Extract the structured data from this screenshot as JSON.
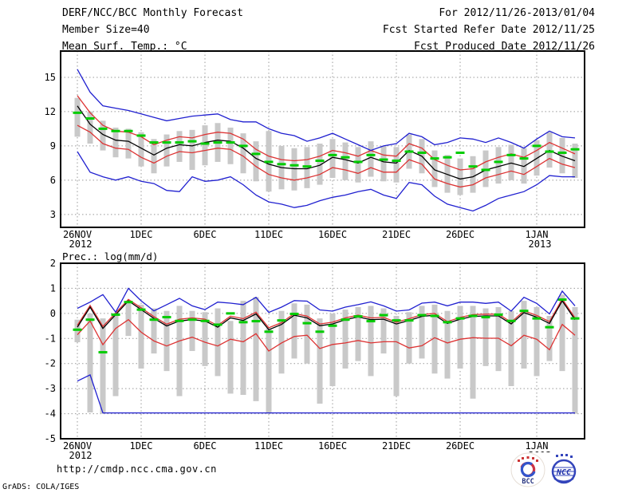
{
  "header": {
    "left_line1": "DERF/NCC/BCC Monthly Forecast",
    "left_line2": "Member Size=40",
    "right_line1": "For 2012/11/26-2013/01/04",
    "right_line2": "Fcst Started Refer Date 2012/11/25",
    "right_line3": "Fcst Produced Date 2012/11/26"
  },
  "footer": {
    "url": "http://cmdp.ncc.cma.gov.cn",
    "credit": "GrADS: COLA/IGES"
  },
  "logos": {
    "bcc": "BCC",
    "ncc": "NCC"
  },
  "colors": {
    "line_blue": "#2020d0",
    "line_red": "#dd3333",
    "line_black": "#000000",
    "clim_green": "#00cc00",
    "spread_bar": "#c9c9c9",
    "grid": "#999999",
    "frame": "#000000"
  },
  "xaxis": {
    "start_date": "2012-11-26",
    "end_date": "2013-01-04",
    "n_days": 40,
    "tick_days": [
      0,
      5,
      10,
      15,
      20,
      25,
      30,
      36
    ],
    "tick_labels": [
      "26NOV",
      "1DEC",
      "6DEC",
      "11DEC",
      "16DEC",
      "21DEC",
      "26DEC",
      "1JAN"
    ],
    "sub_labels": [
      "2012",
      "",
      "",
      "",
      "",
      "",
      "",
      "2013"
    ]
  },
  "chart_data": [
    {
      "type": "line",
      "title": "Mean Surf. Temp.: °C",
      "ylim": [
        1.87,
        17.3
      ],
      "yticks": [
        15,
        12,
        9,
        6,
        3
      ],
      "ygrid": [
        15,
        12,
        9,
        6,
        3
      ],
      "grid": true,
      "legend": "none",
      "series": [
        {
          "name": "mean-plus-spread",
          "color": "line_red",
          "style": "line",
          "values": [
            13.4,
            11.9,
            10.8,
            10.3,
            10.2,
            9.8,
            9.1,
            9.5,
            9.8,
            9.7,
            10.0,
            10.2,
            10.1,
            9.6,
            8.7,
            8.1,
            7.8,
            7.7,
            7.8,
            8.1,
            8.6,
            8.4,
            8.1,
            8.6,
            8.2,
            8.1,
            9.2,
            8.8,
            7.8,
            7.3,
            6.9,
            7.0,
            7.6,
            8.0,
            8.3,
            8.0,
            8.6,
            9.3,
            8.8,
            8.3
          ]
        },
        {
          "name": "mean-minus-spread",
          "color": "line_red",
          "style": "line",
          "values": [
            10.8,
            10.2,
            9.2,
            8.8,
            8.7,
            8.0,
            7.5,
            8.1,
            8.5,
            8.4,
            8.6,
            8.8,
            8.7,
            8.1,
            7.2,
            6.5,
            6.2,
            6.0,
            6.2,
            6.5,
            7.1,
            6.9,
            6.6,
            7.1,
            6.7,
            6.7,
            7.8,
            7.4,
            6.1,
            5.7,
            5.4,
            5.6,
            6.2,
            6.5,
            6.8,
            6.5,
            7.2,
            7.9,
            7.4,
            7.1
          ]
        },
        {
          "name": "ensemble-mean",
          "color": "line_black",
          "style": "line",
          "values": [
            12.5,
            10.9,
            10.0,
            9.5,
            9.4,
            8.8,
            8.2,
            8.8,
            9.1,
            9.0,
            9.3,
            9.5,
            9.4,
            8.8,
            7.9,
            7.4,
            7.1,
            7.0,
            7.0,
            7.3,
            8.0,
            7.8,
            7.5,
            8.0,
            7.6,
            7.5,
            8.6,
            8.1,
            6.9,
            6.5,
            6.1,
            6.3,
            6.9,
            7.2,
            7.5,
            7.2,
            7.9,
            8.6,
            8.1,
            7.7
          ]
        },
        {
          "name": "climatology",
          "color": "clim_green",
          "style": "dash-markers",
          "values": [
            11.9,
            11.4,
            10.5,
            10.3,
            10.3,
            9.9,
            9.3,
            9.3,
            9.3,
            9.4,
            9.2,
            9.3,
            9.3,
            9.0,
            8.3,
            7.6,
            7.4,
            7.3,
            7.2,
            7.7,
            8.2,
            8.0,
            7.6,
            8.2,
            7.8,
            7.7,
            8.5,
            8.4,
            7.9,
            8.0,
            8.4,
            7.2,
            6.9,
            7.6,
            8.2,
            7.9,
            9.0,
            8.5,
            8.4,
            8.7
          ]
        },
        {
          "name": "ensemble-max",
          "color": "line_blue",
          "style": "line",
          "values": [
            15.7,
            13.7,
            12.5,
            12.3,
            12.1,
            11.8,
            11.5,
            11.2,
            11.4,
            11.6,
            11.7,
            11.8,
            11.3,
            11.1,
            11.1,
            10.5,
            10.1,
            9.9,
            9.4,
            9.7,
            10.1,
            9.6,
            9.1,
            8.6,
            9.0,
            9.2,
            10.1,
            9.8,
            9.1,
            9.3,
            9.7,
            9.6,
            9.3,
            9.7,
            9.3,
            8.8,
            9.6,
            10.3,
            9.8,
            9.7
          ]
        },
        {
          "name": "ensemble-min",
          "color": "line_blue",
          "style": "line",
          "values": [
            8.5,
            6.7,
            6.3,
            6.0,
            6.3,
            5.9,
            5.7,
            5.1,
            5.0,
            6.3,
            5.9,
            6.0,
            6.3,
            5.6,
            4.7,
            4.1,
            3.9,
            3.6,
            3.8,
            4.2,
            4.5,
            4.7,
            5.0,
            5.2,
            4.7,
            4.4,
            5.8,
            5.6,
            4.6,
            3.9,
            3.6,
            3.3,
            3.8,
            4.4,
            4.7,
            5.0,
            5.6,
            6.4,
            6.3,
            6.3
          ]
        }
      ],
      "bars": {
        "name": "ensemble-spread-bars",
        "hi": [
          13.2,
          12.0,
          11.2,
          10.6,
          10.5,
          10.2,
          9.6,
          10.0,
          10.3,
          10.4,
          10.8,
          11.0,
          10.6,
          10.1,
          9.4,
          10.3,
          9.0,
          8.8,
          8.9,
          9.2,
          9.6,
          9.3,
          8.9,
          9.4,
          9.0,
          8.9,
          10.0,
          9.6,
          8.6,
          8.2,
          7.9,
          8.1,
          8.6,
          8.9,
          9.1,
          8.8,
          9.5,
          10.2,
          9.7,
          9.2
        ],
        "lo": [
          9.8,
          9.2,
          8.6,
          8.0,
          7.9,
          7.2,
          6.6,
          7.2,
          7.6,
          6.9,
          7.3,
          7.6,
          7.4,
          6.6,
          5.9,
          5.0,
          5.2,
          5.1,
          5.3,
          5.6,
          6.2,
          6.0,
          5.8,
          6.3,
          5.9,
          5.8,
          7.0,
          6.6,
          5.4,
          4.9,
          4.7,
          4.9,
          5.4,
          5.7,
          6.0,
          5.7,
          6.4,
          7.1,
          6.6,
          6.2
        ]
      }
    },
    {
      "type": "line",
      "title": "Prec.: log(mm/d)",
      "ylim": [
        -5,
        2
      ],
      "yticks": [
        2,
        1,
        0,
        -1,
        -2,
        -3,
        -4,
        -5
      ],
      "ygrid": [
        1,
        0,
        -1,
        -2,
        -3,
        -4
      ],
      "grid": true,
      "legend": "none",
      "series": [
        {
          "name": "mean-plus-spread",
          "color": "line_red",
          "style": "line",
          "values": [
            -0.48,
            0.32,
            -0.52,
            0.02,
            0.56,
            0.22,
            -0.13,
            -0.43,
            -0.23,
            -0.18,
            -0.23,
            -0.48,
            -0.11,
            -0.21,
            0.05,
            -0.57,
            -0.37,
            0.0,
            -0.11,
            -0.42,
            -0.35,
            -0.18,
            -0.07,
            -0.18,
            -0.16,
            -0.35,
            -0.21,
            -0.05,
            0.0,
            -0.33,
            -0.16,
            -0.05,
            -0.03,
            -0.03,
            -0.35,
            0.1,
            -0.08,
            -0.33,
            0.57,
            -0.18
          ]
        },
        {
          "name": "mean-minus-spread",
          "color": "line_red",
          "style": "line",
          "values": [
            -0.85,
            -0.3,
            -1.25,
            -0.6,
            -0.25,
            -0.75,
            -1.1,
            -1.3,
            -1.1,
            -0.95,
            -1.15,
            -1.3,
            -1.03,
            -1.13,
            -0.81,
            -1.5,
            -1.18,
            -0.92,
            -0.87,
            -1.4,
            -1.24,
            -1.18,
            -1.08,
            -1.18,
            -1.13,
            -1.13,
            -1.38,
            -1.29,
            -0.97,
            -1.18,
            -1.03,
            -0.97,
            -0.99,
            -0.99,
            -1.29,
            -0.87,
            -1.03,
            -1.45,
            -0.44,
            -0.87
          ]
        },
        {
          "name": "ensemble-mean",
          "color": "line_black",
          "style": "line",
          "values": [
            -0.55,
            0.25,
            -0.6,
            -0.05,
            0.5,
            0.15,
            -0.2,
            -0.5,
            -0.3,
            -0.25,
            -0.3,
            -0.55,
            -0.18,
            -0.28,
            -0.02,
            -0.65,
            -0.44,
            -0.07,
            -0.18,
            -0.49,
            -0.42,
            -0.25,
            -0.14,
            -0.25,
            -0.23,
            -0.42,
            -0.28,
            -0.12,
            -0.07,
            -0.4,
            -0.23,
            -0.12,
            -0.1,
            -0.1,
            -0.42,
            0.03,
            -0.15,
            -0.4,
            0.5,
            -0.25
          ]
        },
        {
          "name": "climatology",
          "color": "clim_green",
          "style": "dash-markers",
          "values": [
            -0.65,
            -0.25,
            -1.55,
            -0.05,
            0.45,
            0.15,
            -0.25,
            -0.15,
            -0.3,
            -0.25,
            -0.3,
            -0.45,
            0.0,
            -0.35,
            -0.31,
            -0.73,
            -0.28,
            -0.02,
            -0.39,
            -0.73,
            -0.49,
            -0.25,
            -0.12,
            -0.31,
            -0.07,
            -0.28,
            -0.28,
            -0.07,
            -0.1,
            -0.35,
            -0.2,
            -0.1,
            -0.15,
            -0.05,
            -0.3,
            0.1,
            -0.2,
            -0.55,
            0.55,
            -0.2
          ]
        },
        {
          "name": "ensemble-max",
          "color": "line_blue",
          "style": "line",
          "values": [
            0.2,
            0.45,
            0.75,
            0.05,
            1.0,
            0.5,
            0.1,
            0.35,
            0.6,
            0.3,
            0.15,
            0.45,
            0.41,
            0.35,
            0.64,
            0.04,
            0.25,
            0.51,
            0.49,
            0.14,
            0.09,
            0.25,
            0.35,
            0.46,
            0.3,
            0.09,
            0.14,
            0.41,
            0.45,
            0.3,
            0.45,
            0.45,
            0.4,
            0.45,
            0.09,
            0.64,
            0.4,
            -0.02,
            0.89,
            0.3
          ]
        },
        {
          "name": "ensemble-min",
          "color": "line_blue",
          "style": "line",
          "values": [
            -2.7,
            -2.45,
            -3.97,
            -3.97,
            -3.97,
            -3.97,
            -3.97,
            -3.97,
            -3.97,
            -3.97,
            -3.97,
            -3.97,
            -3.97,
            -3.97,
            -3.97,
            -3.97,
            -3.97,
            -3.97,
            -3.97,
            -3.97,
            -3.97,
            -3.97,
            -3.97,
            -3.97,
            -3.97,
            -3.97,
            -3.97,
            -3.97,
            -3.97,
            -3.97,
            -3.97,
            -3.97,
            -3.97,
            -3.97,
            -3.97,
            -3.97,
            -3.97,
            -3.97,
            -3.97,
            -3.97
          ]
        }
      ],
      "bars": {
        "name": "ensemble-spread-bars",
        "hi": [
          -0.25,
          0.0,
          -0.2,
          -0.1,
          0.5,
          0.35,
          0.2,
          0.1,
          0.3,
          0.1,
          0.05,
          0.2,
          -0.3,
          0.5,
          0.65,
          -0.6,
          0.1,
          0.4,
          0.35,
          -0.2,
          0.0,
          0.15,
          0.25,
          0.3,
          0.2,
          -0.1,
          0.05,
          0.3,
          0.35,
          0.1,
          0.3,
          0.3,
          0.2,
          0.25,
          0.1,
          0.5,
          0.25,
          -0.1,
          0.75,
          0.25
        ],
        "lo": [
          -1.15,
          -3.95,
          -4.0,
          -3.3,
          -0.9,
          -2.2,
          -1.6,
          -2.3,
          -3.3,
          -1.5,
          -2.1,
          -2.5,
          -3.2,
          -3.25,
          -3.5,
          -4.0,
          -2.4,
          -1.8,
          -2.0,
          -3.6,
          -2.9,
          -2.2,
          -1.9,
          -2.5,
          -1.6,
          -3.3,
          -2.0,
          -1.8,
          -2.4,
          -2.6,
          -2.2,
          -3.4,
          -2.1,
          -2.3,
          -2.9,
          -2.2,
          -2.5,
          -1.9,
          -2.3,
          -4.0
        ]
      }
    }
  ]
}
